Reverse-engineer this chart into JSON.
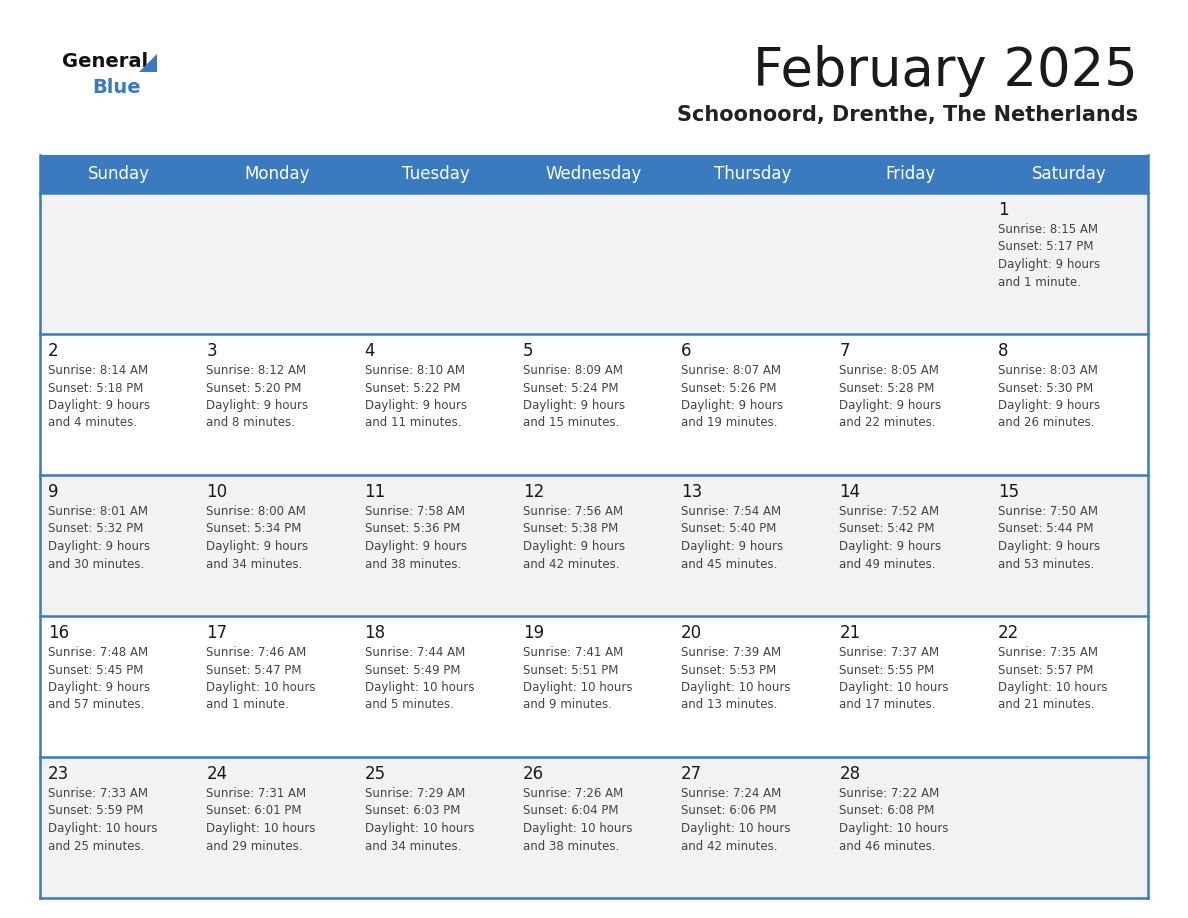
{
  "title": "February 2025",
  "subtitle": "Schoonoord, Drenthe, The Netherlands",
  "header_color": "#3a7bbf",
  "header_text_color": "#ffffff",
  "cell_bg_color": "#ffffff",
  "alt_cell_bg_color": "#f2f2f2",
  "border_color": "#3a7bbf",
  "day_names": [
    "Sunday",
    "Monday",
    "Tuesday",
    "Wednesday",
    "Thursday",
    "Friday",
    "Saturday"
  ],
  "title_color": "#1a1a1a",
  "subtitle_color": "#222222",
  "text_color": "#444444",
  "day_number_color": "#1a1a1a",
  "logo_general_color": "#111111",
  "logo_blue_color": "#3a7bbf",
  "logo_triangle_color": "#3a7bbf",
  "calendar": [
    [
      null,
      null,
      null,
      null,
      null,
      null,
      {
        "day": 1,
        "sunrise": "8:15 AM",
        "sunset": "5:17 PM",
        "daylight": "9 hours and 1 minute."
      }
    ],
    [
      {
        "day": 2,
        "sunrise": "8:14 AM",
        "sunset": "5:18 PM",
        "daylight": "9 hours and 4 minutes."
      },
      {
        "day": 3,
        "sunrise": "8:12 AM",
        "sunset": "5:20 PM",
        "daylight": "9 hours and 8 minutes."
      },
      {
        "day": 4,
        "sunrise": "8:10 AM",
        "sunset": "5:22 PM",
        "daylight": "9 hours and 11 minutes."
      },
      {
        "day": 5,
        "sunrise": "8:09 AM",
        "sunset": "5:24 PM",
        "daylight": "9 hours and 15 minutes."
      },
      {
        "day": 6,
        "sunrise": "8:07 AM",
        "sunset": "5:26 PM",
        "daylight": "9 hours and 19 minutes."
      },
      {
        "day": 7,
        "sunrise": "8:05 AM",
        "sunset": "5:28 PM",
        "daylight": "9 hours and 22 minutes."
      },
      {
        "day": 8,
        "sunrise": "8:03 AM",
        "sunset": "5:30 PM",
        "daylight": "9 hours and 26 minutes."
      }
    ],
    [
      {
        "day": 9,
        "sunrise": "8:01 AM",
        "sunset": "5:32 PM",
        "daylight": "9 hours and 30 minutes."
      },
      {
        "day": 10,
        "sunrise": "8:00 AM",
        "sunset": "5:34 PM",
        "daylight": "9 hours and 34 minutes."
      },
      {
        "day": 11,
        "sunrise": "7:58 AM",
        "sunset": "5:36 PM",
        "daylight": "9 hours and 38 minutes."
      },
      {
        "day": 12,
        "sunrise": "7:56 AM",
        "sunset": "5:38 PM",
        "daylight": "9 hours and 42 minutes."
      },
      {
        "day": 13,
        "sunrise": "7:54 AM",
        "sunset": "5:40 PM",
        "daylight": "9 hours and 45 minutes."
      },
      {
        "day": 14,
        "sunrise": "7:52 AM",
        "sunset": "5:42 PM",
        "daylight": "9 hours and 49 minutes."
      },
      {
        "day": 15,
        "sunrise": "7:50 AM",
        "sunset": "5:44 PM",
        "daylight": "9 hours and 53 minutes."
      }
    ],
    [
      {
        "day": 16,
        "sunrise": "7:48 AM",
        "sunset": "5:45 PM",
        "daylight": "9 hours and 57 minutes."
      },
      {
        "day": 17,
        "sunrise": "7:46 AM",
        "sunset": "5:47 PM",
        "daylight": "10 hours and 1 minute."
      },
      {
        "day": 18,
        "sunrise": "7:44 AM",
        "sunset": "5:49 PM",
        "daylight": "10 hours and 5 minutes."
      },
      {
        "day": 19,
        "sunrise": "7:41 AM",
        "sunset": "5:51 PM",
        "daylight": "10 hours and 9 minutes."
      },
      {
        "day": 20,
        "sunrise": "7:39 AM",
        "sunset": "5:53 PM",
        "daylight": "10 hours and 13 minutes."
      },
      {
        "day": 21,
        "sunrise": "7:37 AM",
        "sunset": "5:55 PM",
        "daylight": "10 hours and 17 minutes."
      },
      {
        "day": 22,
        "sunrise": "7:35 AM",
        "sunset": "5:57 PM",
        "daylight": "10 hours and 21 minutes."
      }
    ],
    [
      {
        "day": 23,
        "sunrise": "7:33 AM",
        "sunset": "5:59 PM",
        "daylight": "10 hours and 25 minutes."
      },
      {
        "day": 24,
        "sunrise": "7:31 AM",
        "sunset": "6:01 PM",
        "daylight": "10 hours and 29 minutes."
      },
      {
        "day": 25,
        "sunrise": "7:29 AM",
        "sunset": "6:03 PM",
        "daylight": "10 hours and 34 minutes."
      },
      {
        "day": 26,
        "sunrise": "7:26 AM",
        "sunset": "6:04 PM",
        "daylight": "10 hours and 38 minutes."
      },
      {
        "day": 27,
        "sunrise": "7:24 AM",
        "sunset": "6:06 PM",
        "daylight": "10 hours and 42 minutes."
      },
      {
        "day": 28,
        "sunrise": "7:22 AM",
        "sunset": "6:08 PM",
        "daylight": "10 hours and 46 minutes."
      },
      null
    ]
  ]
}
